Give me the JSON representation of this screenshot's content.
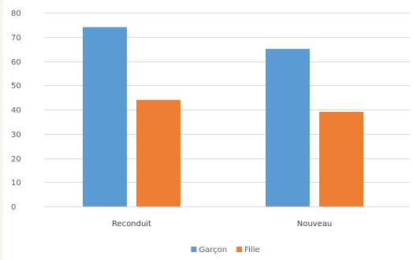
{
  "chart_data": {
    "type": "bar",
    "categories": [
      "Reconduit",
      "Nouveau"
    ],
    "series": [
      {
        "name": "Garçon",
        "values": [
          74,
          65
        ],
        "color": "#5b9bd5"
      },
      {
        "name": "Fille",
        "values": [
          44,
          39
        ],
        "color": "#ed7d31"
      }
    ],
    "ylim": [
      0,
      80
    ],
    "yticks": [
      0,
      10,
      20,
      30,
      40,
      50,
      60,
      70,
      80
    ],
    "grid": true,
    "legend_position": "bottom"
  }
}
